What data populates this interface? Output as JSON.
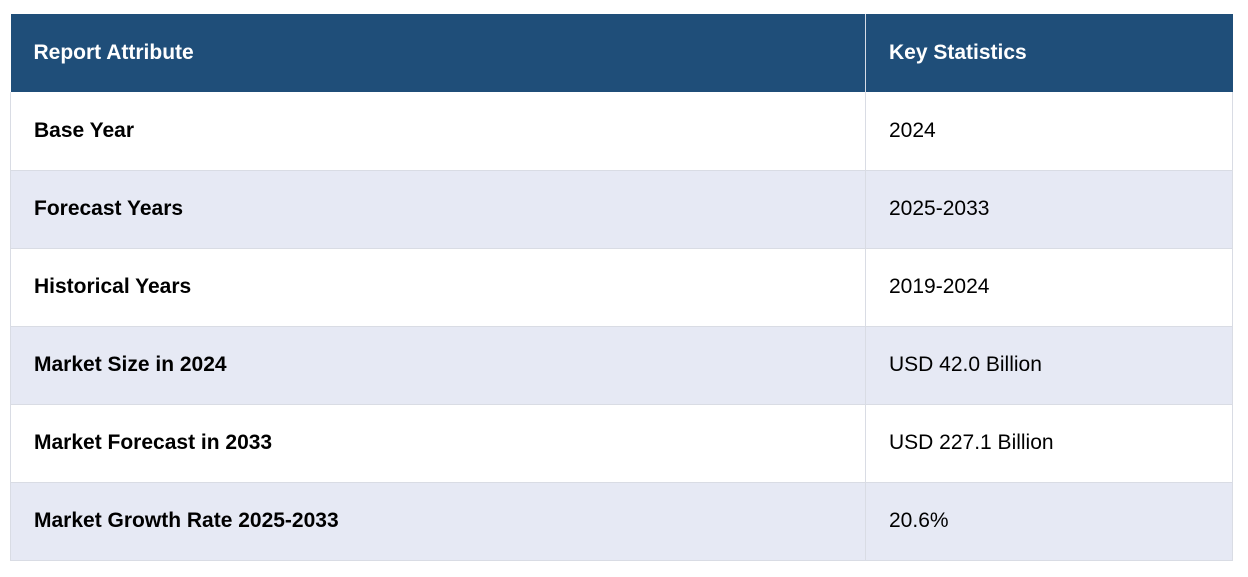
{
  "header": {
    "col1": "Report Attribute",
    "col2": "Key Statistics"
  },
  "colors": {
    "header_bg": "#1f4e79",
    "stripe_bg": "#e6e9f4"
  },
  "rows": [
    {
      "attribute": "Base Year",
      "value": "2024"
    },
    {
      "attribute": "Forecast Years",
      "value": "2025-2033"
    },
    {
      "attribute": "Historical Years",
      "value": "2019-2024"
    },
    {
      "attribute": "Market Size in 2024",
      "value": "USD 42.0 Billion"
    },
    {
      "attribute": "Market Forecast in 2033",
      "value": "USD 227.1 Billion"
    },
    {
      "attribute": "Market Growth Rate 2025-2033",
      "value": "20.6%"
    }
  ]
}
